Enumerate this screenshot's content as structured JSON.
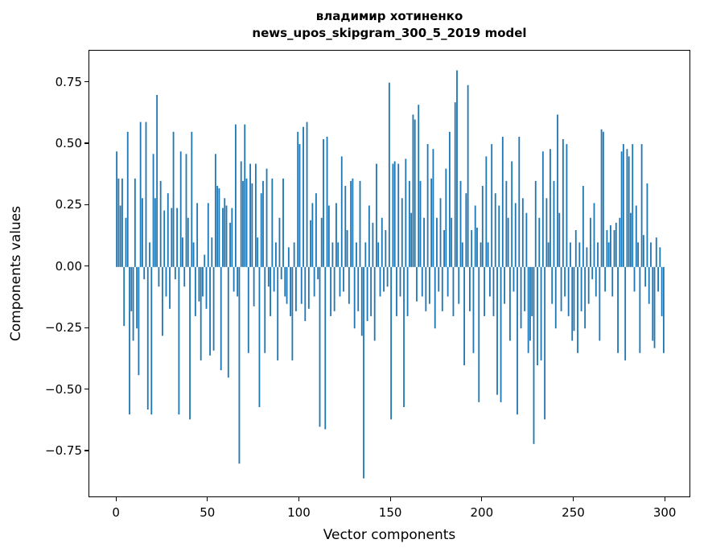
{
  "chart_data": {
    "type": "bar",
    "title_line1": "владимир хотиненко",
    "title_line2": "news_upos_skipgram_300_5_2019 model",
    "xlabel": "Vector components",
    "ylabel": "Components values",
    "bar_color": "#1f77b4",
    "xlim": [
      -15,
      314
    ],
    "ylim": [
      -0.94,
      0.88
    ],
    "x_ticks": [
      0,
      50,
      100,
      150,
      200,
      250,
      300
    ],
    "x_tick_labels": [
      "0",
      "50",
      "100",
      "150",
      "200",
      "250",
      "300"
    ],
    "y_ticks": [
      -0.75,
      -0.5,
      -0.25,
      0.0,
      0.25,
      0.5,
      0.75
    ],
    "y_tick_labels": [
      "−0.75",
      "−0.50",
      "−0.25",
      "0.00",
      "0.25",
      "0.50",
      "0.75"
    ],
    "bar_width_units": 0.8,
    "values": [
      0.47,
      0.36,
      0.25,
      0.36,
      -0.24,
      0.2,
      0.55,
      -0.6,
      -0.18,
      -0.3,
      0.36,
      -0.25,
      -0.44,
      0.59,
      0.28,
      -0.05,
      0.59,
      -0.58,
      0.1,
      -0.6,
      0.46,
      0.28,
      0.7,
      -0.08,
      0.35,
      -0.28,
      0.23,
      -0.12,
      0.3,
      -0.17,
      0.24,
      0.55,
      -0.05,
      0.24,
      -0.6,
      0.47,
      0.12,
      -0.08,
      0.46,
      0.2,
      -0.62,
      0.55,
      0.1,
      -0.2,
      0.26,
      -0.14,
      -0.38,
      -0.12,
      0.05,
      -0.17,
      0.26,
      -0.36,
      0.12,
      -0.34,
      0.46,
      0.33,
      0.32,
      -0.42,
      0.24,
      0.28,
      0.25,
      -0.45,
      0.18,
      0.24,
      -0.1,
      0.58,
      -0.12,
      -0.8,
      0.43,
      0.35,
      0.58,
      0.36,
      -0.35,
      0.42,
      0.34,
      -0.16,
      0.42,
      0.12,
      -0.57,
      0.3,
      0.35,
      -0.35,
      0.4,
      -0.08,
      -0.2,
      0.36,
      -0.1,
      0.1,
      -0.38,
      0.2,
      -0.05,
      0.36,
      -0.12,
      -0.15,
      0.08,
      -0.2,
      -0.38,
      0.1,
      -0.18,
      0.55,
      0.5,
      -0.15,
      0.57,
      -0.22,
      0.59,
      -0.17,
      0.19,
      0.26,
      -0.12,
      0.3,
      -0.05,
      -0.65,
      0.2,
      0.52,
      -0.66,
      0.53,
      0.25,
      -0.2,
      0.1,
      -0.18,
      0.26,
      0.1,
      -0.12,
      0.45,
      -0.1,
      0.33,
      0.15,
      -0.15,
      0.35,
      0.36,
      -0.25,
      0.1,
      -0.18,
      0.35,
      -0.28,
      -0.86,
      0.1,
      -0.22,
      0.25,
      -0.2,
      0.18,
      -0.3,
      0.42,
      0.1,
      -0.12,
      0.2,
      -0.1,
      0.15,
      -0.08,
      0.75,
      -0.62,
      0.42,
      0.43,
      -0.2,
      0.42,
      -0.12,
      0.28,
      -0.57,
      0.44,
      -0.2,
      0.35,
      0.22,
      0.62,
      0.6,
      -0.14,
      0.66,
      0.35,
      -0.12,
      0.2,
      -0.18,
      0.5,
      -0.15,
      0.36,
      0.48,
      -0.25,
      0.2,
      -0.1,
      0.28,
      -0.18,
      0.15,
      0.4,
      -0.12,
      0.55,
      0.2,
      -0.2,
      0.67,
      0.8,
      -0.15,
      0.35,
      0.1,
      -0.4,
      0.3,
      0.74,
      -0.18,
      0.15,
      -0.35,
      0.25,
      0.16,
      -0.55,
      0.1,
      0.33,
      -0.2,
      0.45,
      0.1,
      -0.12,
      0.5,
      -0.2,
      0.3,
      -0.52,
      0.25,
      -0.55,
      0.53,
      -0.15,
      0.35,
      0.2,
      -0.3,
      0.43,
      -0.1,
      0.26,
      -0.6,
      0.53,
      -0.25,
      0.28,
      -0.18,
      0.22,
      -0.35,
      -0.3,
      -0.2,
      -0.72,
      0.35,
      -0.4,
      0.2,
      -0.38,
      0.47,
      -0.62,
      0.28,
      0.1,
      0.48,
      -0.15,
      0.35,
      -0.25,
      0.62,
      0.22,
      -0.18,
      0.52,
      -0.12,
      0.5,
      -0.2,
      0.1,
      -0.3,
      -0.26,
      0.15,
      -0.35,
      0.1,
      -0.18,
      0.33,
      -0.25,
      0.08,
      -0.15,
      0.2,
      -0.05,
      0.26,
      -0.12,
      0.1,
      -0.3,
      0.56,
      0.55,
      -0.1,
      0.15,
      0.1,
      0.17,
      -0.12,
      0.15,
      0.18,
      -0.35,
      0.2,
      0.47,
      0.5,
      -0.38,
      0.48,
      0.45,
      0.22,
      0.5,
      -0.1,
      0.25,
      0.1,
      -0.35,
      0.5,
      0.13,
      -0.08,
      0.34,
      -0.15,
      0.1,
      -0.3,
      -0.33,
      0.12,
      -0.1,
      0.08,
      -0.2,
      -0.35
    ]
  }
}
